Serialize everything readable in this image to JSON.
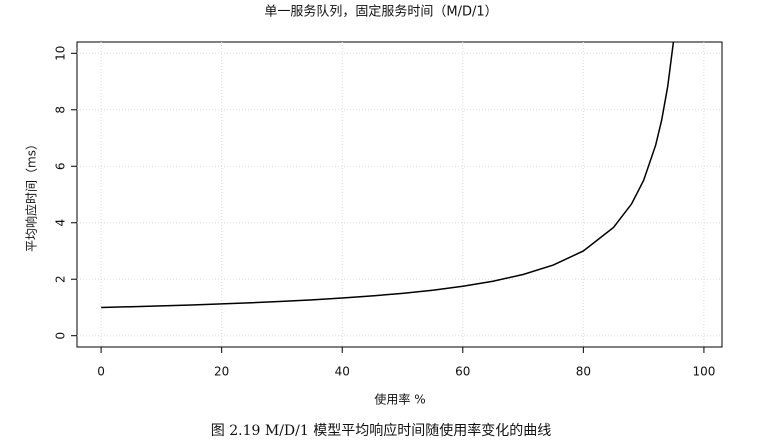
{
  "chart_data": {
    "type": "line",
    "title": "单一服务队列，固定服务时间（M/D/1）",
    "x_label": "使用率 %",
    "y_label": "平均响应时间（ms）",
    "caption": "图 2.19   M/D/1 模型平均响应时间随使用率变化的曲线",
    "x": [
      0,
      5,
      10,
      15,
      20,
      25,
      30,
      35,
      40,
      45,
      50,
      55,
      60,
      65,
      70,
      75,
      80,
      85,
      88,
      90,
      92,
      93,
      94,
      95
    ],
    "series": [
      {
        "name": "M/D/1",
        "color": "#000000",
        "values": [
          1,
          1.026,
          1.056,
          1.088,
          1.125,
          1.167,
          1.214,
          1.269,
          1.333,
          1.409,
          1.5,
          1.611,
          1.75,
          1.929,
          2.167,
          2.5,
          3.0,
          3.833,
          4.667,
          5.5,
          6.75,
          7.643,
          8.833,
          10.5
        ]
      }
    ],
    "xlim": [
      -4,
      103
    ],
    "ylim": [
      -0.4,
      10.4
    ],
    "xticks": [
      0,
      20,
      40,
      60,
      80,
      100
    ],
    "yticks": [
      0,
      2,
      4,
      6,
      8,
      10
    ],
    "grid": true
  }
}
